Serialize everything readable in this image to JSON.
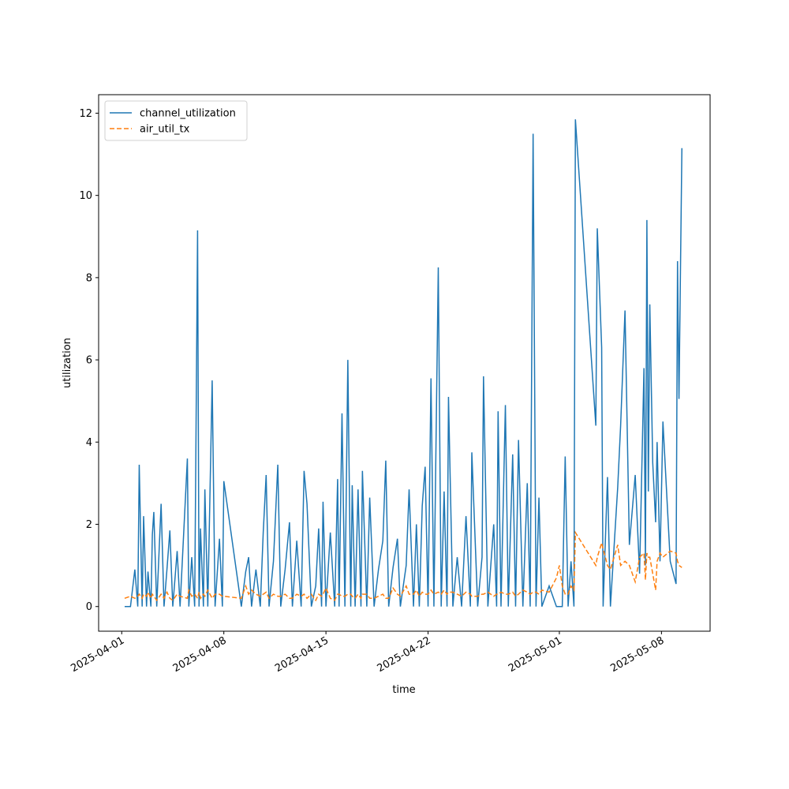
{
  "chart_data": {
    "type": "line",
    "xlabel": "time",
    "ylabel": "utilization",
    "x": [
      "2025-04-01 04:48",
      "2025-04-01 14:24",
      "2025-04-01 21:36",
      "2025-04-02 02:24",
      "2025-04-02 04:48",
      "2025-04-02 09:36",
      "2025-04-02 12:00",
      "2025-04-02 16:48",
      "2025-04-02 19:12",
      "2025-04-03 00:00",
      "2025-04-03 02:24",
      "2025-04-03 04:48",
      "2025-04-03 09:36",
      "2025-04-03 16:48",
      "2025-04-03 21:36",
      "2025-04-04 02:24",
      "2025-04-04 07:12",
      "2025-04-04 12:00",
      "2025-04-04 19:12",
      "2025-04-05 00:00",
      "2025-04-05 12:00",
      "2025-04-05 14:24",
      "2025-04-05 19:12",
      "2025-04-06 00:00",
      "2025-04-06 04:48",
      "2025-04-06 07:12",
      "2025-04-06 09:36",
      "2025-04-06 14:24",
      "2025-04-06 16:48",
      "2025-04-06 21:36",
      "2025-04-07 04:48",
      "2025-04-07 09:36",
      "2025-04-07 16:48",
      "2025-04-07 21:36",
      "2025-04-08 00:00",
      "2025-04-09 04:48",
      "2025-04-09 12:00",
      "2025-04-09 16:48",
      "2025-04-09 21:36",
      "2025-04-10 04:48",
      "2025-04-10 12:00",
      "2025-04-10 16:48",
      "2025-04-10 21:36",
      "2025-04-11 02:24",
      "2025-04-11 09:36",
      "2025-04-11 16:48",
      "2025-04-11 21:36",
      "2025-04-12 04:48",
      "2025-04-12 12:00",
      "2025-04-12 16:48",
      "2025-04-13 00:00",
      "2025-04-13 07:12",
      "2025-04-13 12:00",
      "2025-04-13 16:48",
      "2025-04-14 00:00",
      "2025-04-14 07:12",
      "2025-04-14 12:00",
      "2025-04-14 16:48",
      "2025-04-14 19:12",
      "2025-04-15 00:00",
      "2025-04-15 07:12",
      "2025-04-15 14:24",
      "2025-04-15 19:12",
      "2025-04-15 21:36",
      "2025-04-16 02:24",
      "2025-04-16 07:12",
      "2025-04-16 12:00",
      "2025-04-16 16:48",
      "2025-04-16 19:12",
      "2025-04-17 00:00",
      "2025-04-17 04:48",
      "2025-04-17 09:36",
      "2025-04-17 12:00",
      "2025-04-17 19:12",
      "2025-04-18 00:00",
      "2025-04-18 07:12",
      "2025-04-18 14:24",
      "2025-04-18 21:36",
      "2025-04-19 02:24",
      "2025-04-19 07:12",
      "2025-04-19 14:24",
      "2025-04-19 21:36",
      "2025-04-20 02:24",
      "2025-04-20 12:00",
      "2025-04-20 16:48",
      "2025-04-21 00:00",
      "2025-04-21 04:48",
      "2025-04-21 09:36",
      "2025-04-21 14:24",
      "2025-04-21 19:12",
      "2025-04-22 00:00",
      "2025-04-22 04:48",
      "2025-04-22 09:36",
      "2025-04-22 16:48",
      "2025-04-22 21:36",
      "2025-04-23 02:24",
      "2025-04-23 07:12",
      "2025-04-23 09:36",
      "2025-04-23 16:48",
      "2025-04-24 00:00",
      "2025-04-24 07:12",
      "2025-04-24 14:24",
      "2025-04-24 21:36",
      "2025-04-25 00:00",
      "2025-04-25 09:36",
      "2025-04-25 16:48",
      "2025-04-25 19:12",
      "2025-04-26 02:24",
      "2025-04-26 12:00",
      "2025-04-26 16:48",
      "2025-04-26 19:12",
      "2025-04-27 00:00",
      "2025-04-27 07:12",
      "2025-04-27 12:00",
      "2025-04-27 19:12",
      "2025-04-28 00:00",
      "2025-04-28 04:48",
      "2025-04-28 12:00",
      "2025-04-28 19:12",
      "2025-04-29 00:00",
      "2025-04-29 04:48",
      "2025-04-29 09:36",
      "2025-04-29 14:24",
      "2025-04-29 19:12",
      "2025-04-30 07:12",
      "2025-04-30 19:12",
      "2025-05-01 00:00",
      "2025-05-01 04:48",
      "2025-05-01 09:36",
      "2025-05-01 14:24",
      "2025-05-01 19:12",
      "2025-05-02 00:00",
      "2025-05-02 02:24",
      "2025-05-03 12:00",
      "2025-05-03 14:24",
      "2025-05-03 21:36",
      "2025-05-04 00:00",
      "2025-05-04 07:12",
      "2025-05-04 12:00",
      "2025-05-05 00:00",
      "2025-05-05 04:48",
      "2025-05-05 12:00",
      "2025-05-05 19:12",
      "2025-05-06 04:48",
      "2025-05-06 12:00",
      "2025-05-06 19:12",
      "2025-05-06 21:36",
      "2025-05-07 00:00",
      "2025-05-07 02:24",
      "2025-05-07 04:48",
      "2025-05-07 09:36",
      "2025-05-07 14:24",
      "2025-05-07 16:48",
      "2025-05-07 21:36",
      "2025-05-08 02:24",
      "2025-05-08 14:24",
      "2025-05-09 00:00",
      "2025-05-09 02:24",
      "2025-05-09 04:48",
      "2025-05-09 09:36"
    ],
    "series": [
      {
        "name": "channel_utilization",
        "color": "#1f77b4",
        "linestyle": "solid",
        "values": [
          0,
          0,
          0.9,
          0,
          3.45,
          0,
          2.2,
          0,
          0.85,
          0,
          1.75,
          2.3,
          0,
          2.5,
          0,
          0.9,
          1.85,
          0,
          1.35,
          0,
          3.6,
          0,
          1.2,
          0,
          9.15,
          0,
          1.9,
          0,
          2.85,
          0,
          5.5,
          0,
          1.65,
          0,
          3.05,
          0,
          0.85,
          1.2,
          0,
          0.9,
          0,
          1.8,
          3.2,
          0,
          1.1,
          3.45,
          0,
          0.9,
          2.05,
          0,
          1.6,
          0,
          3.3,
          2.5,
          0,
          0.5,
          1.9,
          0,
          2.55,
          0,
          1.8,
          0,
          3.1,
          0,
          4.7,
          0,
          6.0,
          0,
          2.95,
          0,
          2.85,
          0,
          3.3,
          0,
          2.65,
          0,
          0.9,
          1.6,
          3.55,
          0,
          0.95,
          1.65,
          0,
          1.0,
          2.85,
          0,
          2.0,
          0,
          2.45,
          3.4,
          0,
          5.55,
          0,
          8.25,
          0,
          2.8,
          0,
          5.1,
          0,
          1.2,
          0,
          2.2,
          0,
          3.75,
          0,
          1.2,
          5.6,
          0,
          2.0,
          0,
          4.75,
          0,
          4.9,
          0,
          3.7,
          0,
          4.05,
          0,
          3.0,
          0,
          11.5,
          0,
          2.65,
          0,
          0.5,
          0,
          0,
          0,
          3.65,
          0,
          1.1,
          0,
          11.85,
          4.4,
          9.2,
          6.3,
          0,
          3.15,
          0,
          2.9,
          4.4,
          7.2,
          1.5,
          3.2,
          0.8,
          5.8,
          1.0,
          9.4,
          2.8,
          7.35,
          3.5,
          2.05,
          4.0,
          1.1,
          4.5,
          1.1,
          0.55,
          8.4,
          5.05,
          11.15
        ]
      },
      {
        "name": "air_util_tx",
        "color": "#ff7f0e",
        "linestyle": "dashed",
        "values": [
          0.2,
          0.25,
          0.2,
          0.25,
          0.3,
          0.2,
          0.3,
          0.25,
          0.35,
          0.2,
          0.3,
          0.25,
          0.15,
          0.3,
          0.2,
          0.35,
          0.2,
          0.15,
          0.3,
          0.25,
          0.2,
          0.4,
          0.25,
          0.3,
          0.2,
          0.35,
          0.2,
          0.3,
          0.25,
          0.4,
          0.2,
          0.3,
          0.3,
          0.25,
          0.25,
          0.2,
          0.5,
          0.3,
          0.4,
          0.3,
          0.25,
          0.3,
          0.35,
          0.2,
          0.3,
          0.25,
          0.25,
          0.3,
          0.2,
          0.2,
          0.3,
          0.25,
          0.3,
          0.2,
          0.3,
          0.15,
          0.3,
          0.25,
          0.3,
          0.45,
          0.2,
          0.15,
          0.3,
          0.3,
          0.25,
          0.25,
          0.3,
          0.3,
          0.25,
          0.2,
          0.3,
          0.2,
          0.3,
          0.3,
          0.2,
          0.2,
          0.25,
          0.3,
          0.2,
          0.2,
          0.45,
          0.3,
          0.25,
          0.5,
          0.3,
          0.3,
          0.4,
          0.25,
          0.35,
          0.3,
          0.3,
          0.4,
          0.3,
          0.35,
          0.3,
          0.4,
          0.3,
          0.35,
          0.35,
          0.3,
          0.25,
          0.35,
          0.3,
          0.25,
          0.25,
          0.3,
          0.3,
          0.35,
          0.25,
          0.3,
          0.3,
          0.35,
          0.3,
          0.3,
          0.35,
          0.25,
          0.3,
          0.4,
          0.35,
          0.3,
          0.35,
          0.35,
          0.3,
          0.4,
          0.35,
          0.7,
          1.0,
          0.5,
          0.3,
          0.3,
          0.5,
          0.4,
          1.8,
          1.0,
          1.2,
          1.55,
          1.4,
          1.0,
          0.9,
          1.5,
          1.0,
          1.1,
          1.0,
          0.6,
          1.2,
          1.3,
          0.65,
          1.3,
          1.2,
          1.2,
          0.8,
          0.4,
          1.1,
          1.3,
          1.2,
          1.35,
          1.3,
          1.1,
          1.0,
          0.95
        ]
      }
    ],
    "xlim": [
      "2025-03-30 10:00",
      "2025-05-11 08:00"
    ],
    "xticks": [
      "2025-04-01",
      "2025-04-08",
      "2025-04-15",
      "2025-04-22",
      "2025-05-01",
      "2025-05-08"
    ],
    "ylim": [
      -0.6,
      12.45
    ],
    "yticks": [
      0,
      2,
      4,
      6,
      8,
      10,
      12
    ],
    "legend": "upper left"
  }
}
